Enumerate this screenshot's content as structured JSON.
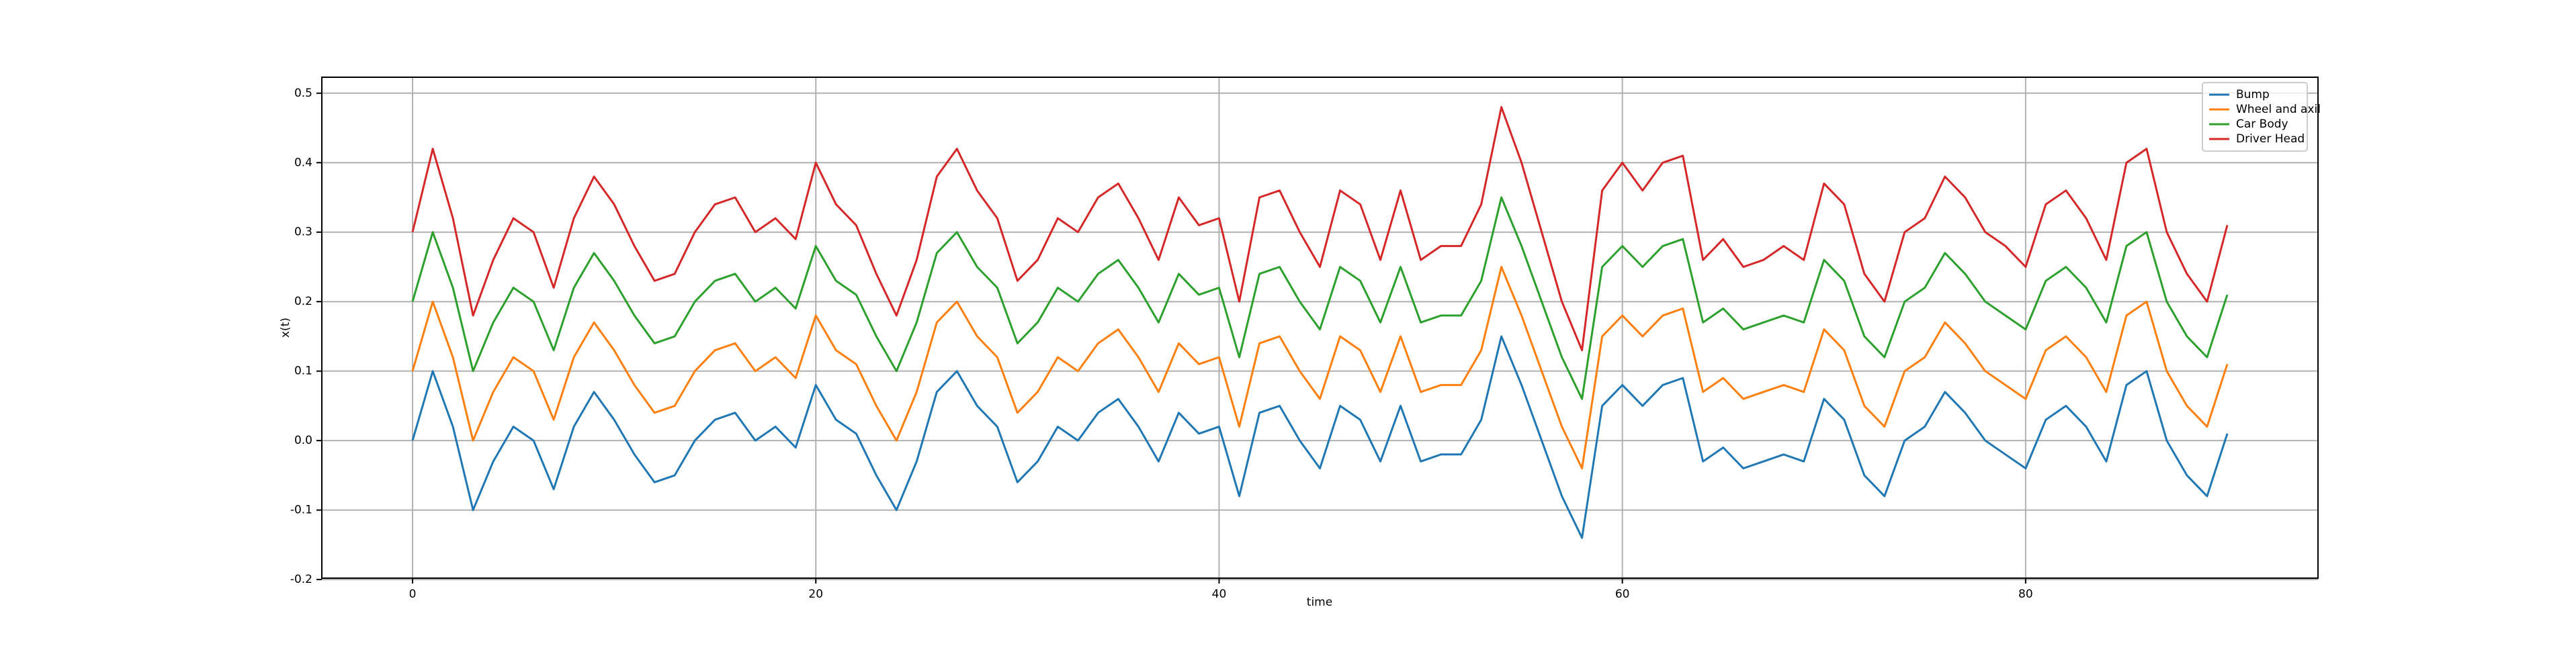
{
  "chart_data": {
    "type": "line",
    "xlabel": "time",
    "ylabel": "x(t)",
    "x": [
      0,
      1,
      2,
      3,
      4,
      5,
      6,
      7,
      8,
      9,
      10,
      11,
      12,
      13,
      14,
      15,
      16,
      17,
      18,
      19,
      20,
      21,
      22,
      23,
      24,
      25,
      26,
      27,
      28,
      29,
      30,
      31,
      32,
      33,
      34,
      35,
      36,
      37,
      38,
      39,
      40,
      41,
      42,
      43,
      44,
      45,
      46,
      47,
      48,
      49,
      50,
      51,
      52,
      53,
      54,
      55,
      56,
      57,
      58,
      59,
      60,
      61,
      62,
      63,
      64,
      65,
      66,
      67,
      68,
      69,
      70,
      71,
      72,
      73,
      74,
      75,
      76,
      77,
      78,
      79,
      80,
      81,
      82,
      83,
      84,
      85,
      86,
      87,
      88,
      89,
      90
    ],
    "series": [
      {
        "name": "Bump",
        "color": "#1f77b4",
        "values": [
          0.0,
          0.1,
          0.02,
          -0.1,
          -0.03,
          0.02,
          0.0,
          -0.07,
          0.02,
          0.07,
          0.03,
          -0.02,
          -0.06,
          -0.05,
          0.0,
          0.03,
          0.04,
          0.0,
          0.02,
          -0.01,
          0.08,
          0.03,
          0.01,
          -0.05,
          -0.1,
          -0.03,
          0.07,
          0.1,
          0.05,
          0.02,
          -0.06,
          -0.03,
          0.02,
          0.0,
          0.04,
          0.06,
          0.02,
          -0.03,
          0.04,
          0.01,
          0.02,
          -0.08,
          0.04,
          0.05,
          0.0,
          -0.04,
          0.05,
          0.03,
          -0.03,
          0.05,
          -0.03,
          -0.02,
          -0.02,
          0.03,
          0.15,
          0.08,
          0.0,
          -0.08,
          -0.14,
          0.05,
          0.08,
          0.05,
          0.08,
          0.09,
          -0.03,
          -0.01,
          -0.04,
          -0.03,
          -0.02,
          -0.03,
          0.06,
          0.03,
          -0.05,
          -0.08,
          0.0,
          0.02,
          0.07,
          0.04,
          0.0,
          -0.02,
          -0.04,
          0.03,
          0.05,
          0.02,
          -0.03,
          0.08,
          0.1,
          0.0,
          -0.05,
          -0.08,
          0.01
        ]
      },
      {
        "name": "Wheel and axil",
        "color": "#ff7f0e",
        "values": [
          0.1,
          0.2,
          0.12,
          0.0,
          0.07,
          0.12,
          0.1,
          0.03,
          0.12,
          0.17,
          0.13,
          0.08,
          0.04,
          0.05,
          0.1,
          0.13,
          0.14,
          0.1,
          0.12,
          0.09,
          0.18,
          0.13,
          0.11,
          0.05,
          0.0,
          0.07,
          0.17,
          0.2,
          0.15,
          0.12,
          0.04,
          0.07,
          0.12,
          0.1,
          0.14,
          0.16,
          0.12,
          0.07,
          0.14,
          0.11,
          0.12,
          0.02,
          0.14,
          0.15,
          0.1,
          0.06,
          0.15,
          0.13,
          0.07,
          0.15,
          0.07,
          0.08,
          0.08,
          0.13,
          0.25,
          0.18,
          0.1,
          0.02,
          -0.04,
          0.15,
          0.18,
          0.15,
          0.18,
          0.19,
          0.07,
          0.09,
          0.06,
          0.07,
          0.08,
          0.07,
          0.16,
          0.13,
          0.05,
          0.02,
          0.1,
          0.12,
          0.17,
          0.14,
          0.1,
          0.08,
          0.06,
          0.13,
          0.15,
          0.12,
          0.07,
          0.18,
          0.2,
          0.1,
          0.05,
          0.02,
          0.11
        ]
      },
      {
        "name": "Car Body",
        "color": "#2ca02c",
        "values": [
          0.2,
          0.3,
          0.22,
          0.1,
          0.17,
          0.22,
          0.2,
          0.13,
          0.22,
          0.27,
          0.23,
          0.18,
          0.14,
          0.15,
          0.2,
          0.23,
          0.24,
          0.2,
          0.22,
          0.19,
          0.28,
          0.23,
          0.21,
          0.15,
          0.1,
          0.17,
          0.27,
          0.3,
          0.25,
          0.22,
          0.14,
          0.17,
          0.22,
          0.2,
          0.24,
          0.26,
          0.22,
          0.17,
          0.24,
          0.21,
          0.22,
          0.12,
          0.24,
          0.25,
          0.2,
          0.16,
          0.25,
          0.23,
          0.17,
          0.25,
          0.17,
          0.18,
          0.18,
          0.23,
          0.35,
          0.28,
          0.2,
          0.12,
          0.06,
          0.25,
          0.28,
          0.25,
          0.28,
          0.29,
          0.17,
          0.19,
          0.16,
          0.17,
          0.18,
          0.17,
          0.26,
          0.23,
          0.15,
          0.12,
          0.2,
          0.22,
          0.27,
          0.24,
          0.2,
          0.18,
          0.16,
          0.23,
          0.25,
          0.22,
          0.17,
          0.28,
          0.3,
          0.2,
          0.15,
          0.12,
          0.21
        ]
      },
      {
        "name": "Driver Head",
        "color": "#d62728",
        "values": [
          0.3,
          0.42,
          0.32,
          0.18,
          0.26,
          0.32,
          0.3,
          0.22,
          0.32,
          0.38,
          0.34,
          0.28,
          0.23,
          0.24,
          0.3,
          0.34,
          0.35,
          0.3,
          0.32,
          0.29,
          0.4,
          0.34,
          0.31,
          0.24,
          0.18,
          0.26,
          0.38,
          0.42,
          0.36,
          0.32,
          0.23,
          0.26,
          0.32,
          0.3,
          0.35,
          0.37,
          0.32,
          0.26,
          0.35,
          0.31,
          0.32,
          0.2,
          0.35,
          0.36,
          0.3,
          0.25,
          0.36,
          0.34,
          0.26,
          0.36,
          0.26,
          0.28,
          0.28,
          0.34,
          0.48,
          0.4,
          0.3,
          0.2,
          0.13,
          0.36,
          0.4,
          0.36,
          0.4,
          0.41,
          0.26,
          0.29,
          0.25,
          0.26,
          0.28,
          0.26,
          0.37,
          0.34,
          0.24,
          0.2,
          0.3,
          0.32,
          0.38,
          0.35,
          0.3,
          0.28,
          0.25,
          0.34,
          0.36,
          0.32,
          0.26,
          0.4,
          0.42,
          0.3,
          0.24,
          0.2,
          0.31
        ]
      }
    ],
    "xlim": [
      -4.5,
      94.5
    ],
    "xticks": [
      0,
      20,
      40,
      60,
      80
    ],
    "ylim": [
      -0.198,
      0.523
    ],
    "yticks": [
      -0.2,
      -0.1,
      {
        "value": 0,
        "label": "0.0"
      },
      0.1,
      0.2,
      0.3,
      0.4,
      0.5
    ],
    "grid": true,
    "legend": "upper right"
  }
}
